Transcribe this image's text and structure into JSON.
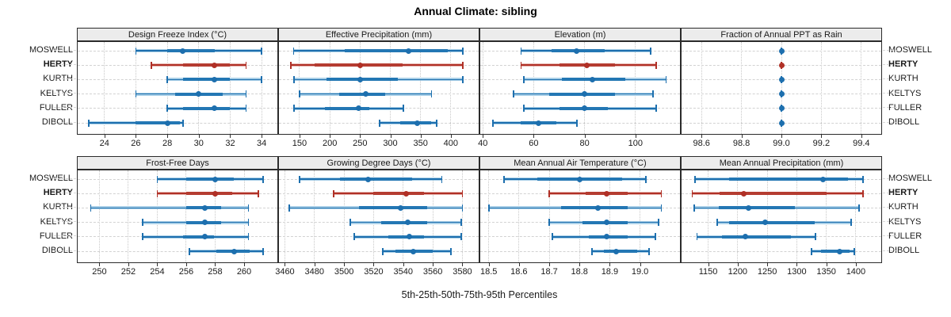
{
  "title": "Annual Climate: sibling",
  "caption": "5th-25th-50th-75th-95th Percentiles",
  "percentile_labels": [
    "5th",
    "25th",
    "50th",
    "75th",
    "95th"
  ],
  "stations": [
    {
      "name": "MOSWELL",
      "emphasis": false
    },
    {
      "name": "HERTY",
      "emphasis": true
    },
    {
      "name": "KURTH",
      "emphasis": false
    },
    {
      "name": "KELTYS",
      "emphasis": false
    },
    {
      "name": "FULLER",
      "emphasis": false
    },
    {
      "name": "DIBOLL",
      "emphasis": false
    }
  ],
  "colors": {
    "blue_dark": "#1d6fae",
    "blue_mid": "#2377b4",
    "blue_light": "#a9cfe7",
    "red_dark": "#b03026",
    "red_mid": "#b53c31",
    "red_light": "#e7b6b0",
    "grid": "#c8c8c8",
    "strip_bg": "#ececec",
    "border": "#2b2b2b"
  },
  "chart_data": [
    {
      "type": "dotplot-percentiles",
      "title": "Design Freeze Index (°C)",
      "domain": [
        22.3,
        35.0
      ],
      "ticks": {
        "values": [
          24,
          26,
          28,
          30,
          32,
          34
        ],
        "labels": [
          "24",
          "26",
          "28",
          "30",
          "32",
          "34"
        ]
      },
      "rows": [
        {
          "station": "MOSWELL",
          "p": [
            26,
            28,
            29,
            31,
            34
          ]
        },
        {
          "station": "HERTY",
          "p": [
            27,
            29,
            31,
            32,
            33
          ]
        },
        {
          "station": "KURTH",
          "p": [
            28,
            29,
            31,
            32,
            34
          ]
        },
        {
          "station": "KELTYS",
          "p": [
            26,
            28.5,
            30,
            31.5,
            33
          ]
        },
        {
          "station": "FULLER",
          "p": [
            28,
            29,
            31,
            32,
            33
          ]
        },
        {
          "station": "DIBOLL",
          "p": [
            23,
            26,
            28,
            28.8,
            29
          ]
        }
      ]
    },
    {
      "type": "dotplot-percentiles",
      "title": "Effective Precipitation (mm)",
      "domain": [
        116,
        446
      ],
      "ticks": {
        "values": [
          150,
          200,
          250,
          300,
          350,
          400
        ],
        "labels": [
          "150",
          "200",
          "250",
          "300",
          "350",
          "400"
        ]
      },
      "rows": [
        {
          "station": "MOSWELL",
          "p": [
            140,
            225,
            330,
            395,
            420
          ]
        },
        {
          "station": "HERTY",
          "p": [
            135,
            175,
            250,
            320,
            420
          ]
        },
        {
          "station": "KURTH",
          "p": [
            141,
            194,
            250,
            312,
            420
          ]
        },
        {
          "station": "KELTYS",
          "p": [
            150,
            215,
            260,
            291,
            368
          ]
        },
        {
          "station": "FULLER",
          "p": [
            141,
            192,
            248,
            265,
            321
          ]
        },
        {
          "station": "DIBOLL",
          "p": [
            282,
            316,
            345,
            367,
            376
          ]
        }
      ]
    },
    {
      "type": "dotplot-percentiles",
      "title": "Elevation (m)",
      "domain": [
        39,
        117.5
      ],
      "ticks": {
        "values": [
          40,
          60,
          80,
          100
        ],
        "labels": [
          "40",
          "60",
          "80",
          "100"
        ]
      },
      "rows": [
        {
          "station": "MOSWELL",
          "p": [
            55,
            67,
            77,
            88,
            106
          ]
        },
        {
          "station": "HERTY",
          "p": [
            55,
            70,
            81,
            92,
            108
          ]
        },
        {
          "station": "KURTH",
          "p": [
            56,
            71,
            83,
            96,
            112
          ]
        },
        {
          "station": "KELTYS",
          "p": [
            52,
            66,
            80,
            92,
            107
          ]
        },
        {
          "station": "FULLER",
          "p": [
            56,
            70,
            80,
            89,
            108
          ]
        },
        {
          "station": "DIBOLL",
          "p": [
            44,
            55,
            62,
            69,
            77
          ]
        }
      ]
    },
    {
      "type": "dotplot-percentiles",
      "title": "Fraction of Annual PPT as Rain",
      "domain": [
        98.5,
        99.5
      ],
      "ticks": {
        "values": [
          98.6,
          98.8,
          99.0,
          99.2,
          99.4
        ],
        "labels": [
          "98.6",
          "98.8",
          "99.0",
          "99.2",
          "99.4"
        ]
      },
      "rows": [
        {
          "station": "MOSWELL",
          "p": [
            99,
            99,
            99,
            99,
            99
          ]
        },
        {
          "station": "HERTY",
          "p": [
            99,
            99,
            99,
            99,
            99
          ]
        },
        {
          "station": "KURTH",
          "p": [
            99,
            99,
            99,
            99,
            99
          ]
        },
        {
          "station": "KELTYS",
          "p": [
            99,
            99,
            99,
            99,
            99
          ]
        },
        {
          "station": "FULLER",
          "p": [
            99,
            99,
            99,
            99,
            99
          ]
        },
        {
          "station": "DIBOLL",
          "p": [
            99,
            99,
            99,
            99,
            99
          ]
        }
      ]
    },
    {
      "type": "dotplot-percentiles",
      "title": "Frost-Free Days",
      "domain": [
        248.5,
        262.3
      ],
      "ticks": {
        "values": [
          250,
          252,
          254,
          256,
          258,
          260
        ],
        "labels": [
          "250",
          "252",
          "254",
          "256",
          "258",
          "260"
        ]
      },
      "rows": [
        {
          "station": "MOSWELL",
          "p": [
            254,
            256,
            258,
            259.3,
            261.3
          ]
        },
        {
          "station": "HERTY",
          "p": [
            254,
            256,
            258,
            259.2,
            261
          ]
        },
        {
          "station": "KURTH",
          "p": [
            249.4,
            256,
            257.3,
            258.4,
            260.3
          ]
        },
        {
          "station": "KELTYS",
          "p": [
            253,
            256,
            257.3,
            258.4,
            260.3
          ]
        },
        {
          "station": "FULLER",
          "p": [
            253,
            255.8,
            257.3,
            257.9,
            260.3
          ]
        },
        {
          "station": "DIBOLL",
          "p": [
            256.2,
            258.1,
            259.3,
            260.4,
            261.3
          ]
        }
      ]
    },
    {
      "type": "dotplot-percentiles",
      "title": "Growing Degree Days (°C)",
      "domain": [
        3456,
        3591
      ],
      "ticks": {
        "values": [
          3460,
          3480,
          3500,
          3520,
          3540,
          3560,
          3580
        ],
        "labels": [
          "3460",
          "3480",
          "3500",
          "3520",
          "3540",
          "3560",
          "3580"
        ]
      },
      "rows": [
        {
          "station": "MOSWELL",
          "p": [
            3470,
            3497,
            3516,
            3546,
            3566
          ]
        },
        {
          "station": "HERTY",
          "p": [
            3493,
            3520,
            3542,
            3554,
            3580
          ]
        },
        {
          "station": "KURTH",
          "p": [
            3463,
            3510,
            3538,
            3556,
            3580
          ]
        },
        {
          "station": "KELTYS",
          "p": [
            3504,
            3525,
            3543,
            3556,
            3579
          ]
        },
        {
          "station": "FULLER",
          "p": [
            3507,
            3530,
            3544,
            3554,
            3579
          ]
        },
        {
          "station": "DIBOLL",
          "p": [
            3526,
            3535,
            3547,
            3560,
            3572
          ]
        }
      ]
    },
    {
      "type": "dotplot-percentiles",
      "title": "Mean Annual Air Temperature (°C)",
      "domain": [
        18.472,
        19.132
      ],
      "ticks": {
        "values": [
          18.5,
          18.6,
          18.7,
          18.8,
          18.9,
          19.0
        ],
        "labels": [
          "18.5",
          "18.6",
          "18.7",
          "18.8",
          "18.9",
          "19.0"
        ]
      },
      "rows": [
        {
          "station": "MOSWELL",
          "p": [
            18.55,
            18.66,
            18.8,
            18.94,
            19.02
          ]
        },
        {
          "station": "HERTY",
          "p": [
            18.7,
            18.82,
            18.89,
            18.96,
            19.07
          ]
        },
        {
          "station": "KURTH",
          "p": [
            18.5,
            18.74,
            18.86,
            18.96,
            19.07
          ]
        },
        {
          "station": "KELTYS",
          "p": [
            18.7,
            18.81,
            18.89,
            18.96,
            19.06
          ]
        },
        {
          "station": "FULLER",
          "p": [
            18.71,
            18.83,
            18.89,
            18.96,
            19.05
          ]
        },
        {
          "station": "DIBOLL",
          "p": [
            18.84,
            18.88,
            18.92,
            18.99,
            19.03
          ]
        }
      ]
    },
    {
      "type": "dotplot-percentiles",
      "title": "Mean Annual Precipitation (mm)",
      "domain": [
        1105,
        1443
      ],
      "ticks": {
        "values": [
          1150,
          1200,
          1250,
          1300,
          1350,
          1400
        ],
        "labels": [
          "1150",
          "1200",
          "1250",
          "1300",
          "1350",
          "1400"
        ]
      },
      "rows": [
        {
          "station": "MOSWELL",
          "p": [
            1128,
            1186,
            1345,
            1387,
            1412
          ]
        },
        {
          "station": "HERTY",
          "p": [
            1123,
            1170,
            1210,
            1350,
            1412
          ]
        },
        {
          "station": "KURTH",
          "p": [
            1126,
            1168,
            1219,
            1297,
            1405
          ]
        },
        {
          "station": "KELTYS",
          "p": [
            1165,
            1186,
            1246,
            1330,
            1392
          ]
        },
        {
          "station": "FULLER",
          "p": [
            1131,
            1174,
            1213,
            1290,
            1332
          ]
        },
        {
          "station": "DIBOLL",
          "p": [
            1325,
            1341,
            1372,
            1390,
            1397
          ]
        }
      ]
    }
  ]
}
